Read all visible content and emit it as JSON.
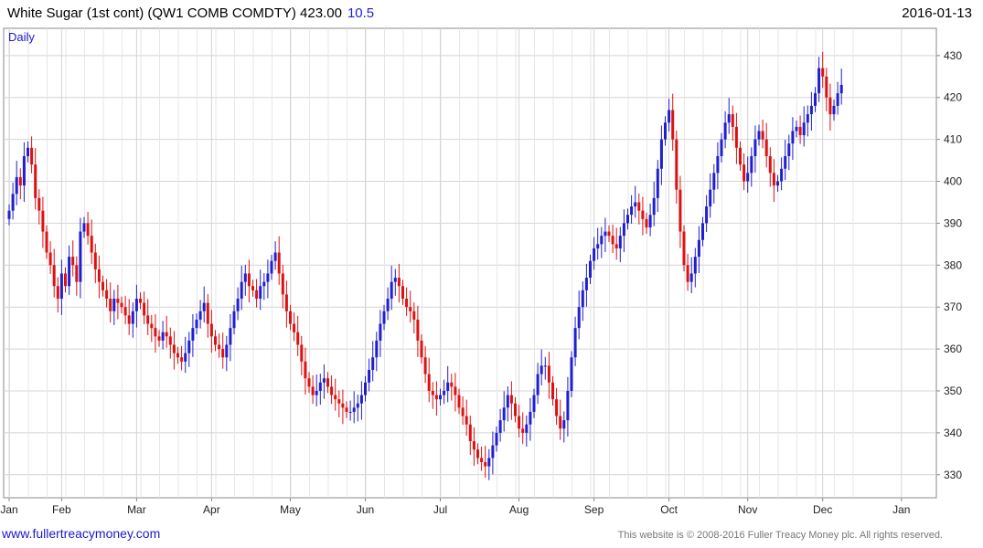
{
  "header": {
    "title": "White Sugar (1st cont) (QW1 COMB COMDTY) 423.00",
    "change": "10.5",
    "date": "2016-01-13"
  },
  "footer": {
    "left_link": "www.fullertreacymoney.com",
    "right_text": "This website is © 2008-2016 Fuller Treacy Money plc. All rights reserved."
  },
  "colors": {
    "up": "#1f1fd0",
    "down": "#dd1111",
    "grid": "#d4d4d4",
    "frame": "#888888"
  },
  "chart_data": {
    "type": "candlestick",
    "period_label": "Daily",
    "y_ticks": [
      330,
      340,
      350,
      360,
      370,
      380,
      390,
      400,
      410,
      420,
      430
    ],
    "ylim": [
      324.5,
      436.5
    ],
    "x_tick_labels": [
      "Jan",
      "Feb",
      "Mar",
      "Apr",
      "May",
      "Jun",
      "Jul",
      "Aug",
      "Sep",
      "Oct",
      "Nov",
      "Dec",
      "Jan"
    ],
    "x_tick_trading_day": [
      0,
      14,
      34,
      54,
      75,
      95,
      115,
      136,
      156,
      176,
      197,
      217,
      238
    ],
    "grid": true,
    "legend": "none",
    "closes": [
      393,
      397,
      401,
      399,
      406,
      408,
      404,
      396,
      393,
      388,
      383,
      380,
      375,
      372,
      378,
      375,
      382,
      380,
      376,
      388,
      390,
      387,
      383,
      379,
      376,
      374,
      372,
      369,
      372,
      371,
      370,
      368,
      366,
      369,
      372,
      371,
      368,
      366,
      365,
      363,
      362,
      364,
      363,
      361,
      359,
      358,
      357,
      359,
      362,
      365,
      367,
      369,
      371,
      366,
      363,
      361,
      360,
      358,
      361,
      365,
      369,
      372,
      376,
      378,
      375,
      374,
      372,
      375,
      376,
      378,
      381,
      383,
      378,
      373,
      369,
      366,
      364,
      361,
      357,
      353,
      351,
      349,
      350,
      352,
      353,
      351,
      349,
      348,
      347,
      346,
      345,
      345,
      346,
      347,
      349,
      352,
      355,
      358,
      362,
      366,
      369,
      372,
      376,
      377,
      375,
      372,
      370,
      369,
      367,
      362,
      358,
      354,
      350,
      349,
      348,
      349,
      350,
      352,
      351,
      349,
      346,
      344,
      342,
      338,
      336,
      334,
      333,
      332,
      334,
      337,
      340,
      343,
      346,
      349,
      347,
      344,
      341,
      340,
      342,
      345,
      349,
      354,
      356,
      356,
      352,
      348,
      344,
      341,
      343,
      350,
      358,
      365,
      370,
      374,
      377,
      381,
      384,
      385,
      387,
      388,
      387,
      385,
      384,
      387,
      390,
      392,
      394,
      395,
      393,
      391,
      389,
      392,
      396,
      403,
      410,
      414,
      417,
      410,
      398,
      388,
      380,
      376,
      378,
      382,
      386,
      390,
      394,
      398,
      402,
      406,
      410,
      414,
      416,
      413,
      408,
      404,
      400,
      402,
      406,
      410,
      412,
      410,
      406,
      402,
      399,
      400,
      403,
      406,
      409,
      412,
      413,
      411,
      414,
      416,
      418,
      421,
      427,
      425,
      420,
      416,
      418,
      421,
      423
    ]
  }
}
